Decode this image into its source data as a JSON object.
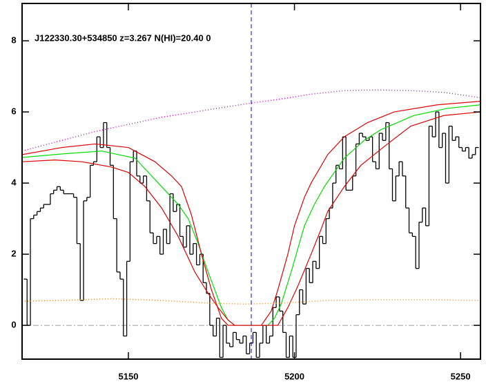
{
  "chart_data": {
    "type": "line",
    "annotation": "J122330.30+534850 z=3.267 N(HI)=20.40 0",
    "xlim": [
      5118,
      5256
    ],
    "ylim": [
      -0.95,
      9.05
    ],
    "xticks": [
      5150,
      5200,
      5250
    ],
    "yticks": [
      0,
      2,
      4,
      6,
      8
    ],
    "vline": 5187,
    "vline_color": "#0000ff",
    "hline": 0,
    "hline_color": "#999999",
    "series": [
      {
        "style": "steps",
        "color": "#000000",
        "x": [
          5119,
          5120,
          5121,
          5122,
          5123,
          5124,
          5125,
          5126,
          5127,
          5128,
          5129,
          5130,
          5131,
          5132,
          5133,
          5134,
          5135,
          5136,
          5137,
          5138,
          5139,
          5140,
          5141,
          5142,
          5143,
          5144,
          5145,
          5146,
          5147,
          5148,
          5149,
          5150,
          5151,
          5152,
          5153,
          5154,
          5155,
          5156,
          5157,
          5158,
          5159,
          5160,
          5161,
          5162,
          5163,
          5164,
          5165,
          5166,
          5167,
          5168,
          5169,
          5170,
          5171,
          5172,
          5173,
          5174,
          5175,
          5176,
          5177,
          5178,
          5179,
          5180,
          5181,
          5182,
          5183,
          5184,
          5185,
          5186,
          5187,
          5188,
          5189,
          5190,
          5191,
          5192,
          5193,
          5194,
          5195,
          5196,
          5197,
          5198,
          5199,
          5200,
          5201,
          5202,
          5203,
          5204,
          5205,
          5206,
          5207,
          5208,
          5209,
          5210,
          5211,
          5212,
          5213,
          5214,
          5215,
          5216,
          5217,
          5218,
          5219,
          5220,
          5221,
          5222,
          5223,
          5224,
          5225,
          5226,
          5227,
          5228,
          5229,
          5230,
          5231,
          5232,
          5233,
          5234,
          5235,
          5236,
          5237,
          5238,
          5239,
          5240,
          5241,
          5242,
          5243,
          5244,
          5245,
          5246,
          5247,
          5248,
          5249,
          5250,
          5251,
          5252,
          5253,
          5254,
          5255
        ],
        "values": [
          1.3,
          0.0,
          3.0,
          3.1,
          3.2,
          3.3,
          3.4,
          3.4,
          3.7,
          3.8,
          3.9,
          3.8,
          3.7,
          3.7,
          3.7,
          3.6,
          2.3,
          0.7,
          3.5,
          3.6,
          4.5,
          4.6,
          5.3,
          5.0,
          5.7,
          5.0,
          4.5,
          3.0,
          1.5,
          1.3,
          -0.3,
          1.8,
          4.6,
          4.9,
          4.2,
          4.0,
          4.2,
          3.5,
          2.6,
          2.3,
          2.5,
          2.0,
          2.7,
          2.3,
          3.7,
          3.2,
          3.4,
          2.5,
          2.2,
          2.8,
          2.0,
          2.3,
          1.7,
          2.0,
          1.2,
          0.9,
          0.0,
          -0.3,
          0.2,
          -0.9,
          0.0,
          -0.5,
          -0.6,
          -0.2,
          -0.4,
          -0.5,
          -0.3,
          -0.8,
          -0.5,
          -0.2,
          -0.9,
          -0.5,
          0.0,
          -0.5,
          -0.3,
          0.5,
          0.8,
          0.4,
          -0.2,
          -0.9,
          -0.3,
          -0.9,
          0.3,
          1.0,
          0.6,
          1.6,
          1.2,
          1.8,
          1.6,
          2.5,
          2.3,
          3.0,
          3.3,
          4.0,
          4.5,
          4.4,
          5.3,
          3.8,
          3.8,
          4.2,
          5.1,
          5.4,
          5.3,
          5.2,
          5.3,
          4.6,
          4.4,
          5.4,
          5.2,
          5.7,
          4.4,
          3.5,
          4.2,
          4.6,
          4.2,
          3.3,
          2.6,
          2.5,
          1.6,
          2.9,
          3.3,
          2.8,
          5.6,
          5.3,
          6.0,
          5.0,
          5.4,
          4.0,
          5.6,
          5.2,
          5.3,
          5.0,
          4.9,
          5.0,
          4.7,
          4.8,
          5.0
        ]
      },
      {
        "style": "solid",
        "color": "#00dd00",
        "x": [
          5118,
          5130,
          5142,
          5152,
          5159,
          5165,
          5168,
          5171,
          5174,
          5176,
          5178,
          5180,
          5182,
          5192,
          5194,
          5196,
          5199,
          5203,
          5206,
          5209,
          5215,
          5221,
          5226,
          5236,
          5246,
          5256
        ],
        "values": [
          4.72,
          4.82,
          4.9,
          4.7,
          4.0,
          3.4,
          3.0,
          2.3,
          1.5,
          1.0,
          0.5,
          0.15,
          0.0,
          0.0,
          0.2,
          0.6,
          1.5,
          2.8,
          3.4,
          3.9,
          4.7,
          5.2,
          5.5,
          5.9,
          6.1,
          6.2
        ]
      },
      {
        "style": "solid",
        "color": "#dd0000",
        "x": [
          5118,
          5130,
          5140,
          5150,
          5158,
          5163,
          5166,
          5169,
          5172,
          5175,
          5178,
          5180,
          5190,
          5193,
          5195,
          5198,
          5200,
          5203,
          5205,
          5210,
          5215,
          5222,
          5230,
          5243,
          5256
        ],
        "values": [
          4.8,
          5.0,
          5.1,
          5.0,
          4.6,
          4.2,
          3.9,
          3.1,
          2.0,
          1.0,
          0.2,
          0.0,
          0.0,
          0.4,
          1.0,
          2.0,
          2.8,
          3.6,
          4.0,
          4.8,
          5.3,
          5.7,
          6.0,
          6.2,
          6.3
        ]
      },
      {
        "style": "solid",
        "color": "#dd0000",
        "x": [
          5118,
          5128,
          5136,
          5145,
          5150,
          5155,
          5160,
          5165,
          5170,
          5174,
          5177,
          5180,
          5182,
          5195,
          5198,
          5201,
          5205,
          5208,
          5210,
          5215,
          5220,
          5228,
          5235,
          5245,
          5256
        ],
        "values": [
          4.6,
          4.65,
          4.6,
          4.45,
          4.3,
          3.9,
          3.3,
          2.5,
          1.5,
          0.9,
          0.5,
          0.15,
          0.0,
          0.0,
          0.5,
          1.1,
          2.0,
          2.7,
          3.2,
          3.9,
          4.5,
          5.1,
          5.6,
          5.9,
          6.0
        ]
      },
      {
        "style": "dotted",
        "color": "#cc00cc",
        "x": [
          5118,
          5130,
          5140,
          5150,
          5160,
          5170,
          5180,
          5187,
          5195,
          5205,
          5215,
          5225,
          5235,
          5245,
          5256
        ],
        "values": [
          4.9,
          5.2,
          5.45,
          5.65,
          5.85,
          6.0,
          6.15,
          6.25,
          6.35,
          6.5,
          6.6,
          6.62,
          6.6,
          6.55,
          6.4
        ]
      },
      {
        "style": "dotted",
        "color": "#ee8833",
        "x": [
          5118,
          5130,
          5145,
          5160,
          5175,
          5185,
          5195,
          5210,
          5225,
          5240,
          5256
        ],
        "values": [
          0.68,
          0.7,
          0.75,
          0.7,
          0.62,
          0.6,
          0.62,
          0.7,
          0.72,
          0.72,
          0.7
        ]
      }
    ]
  }
}
